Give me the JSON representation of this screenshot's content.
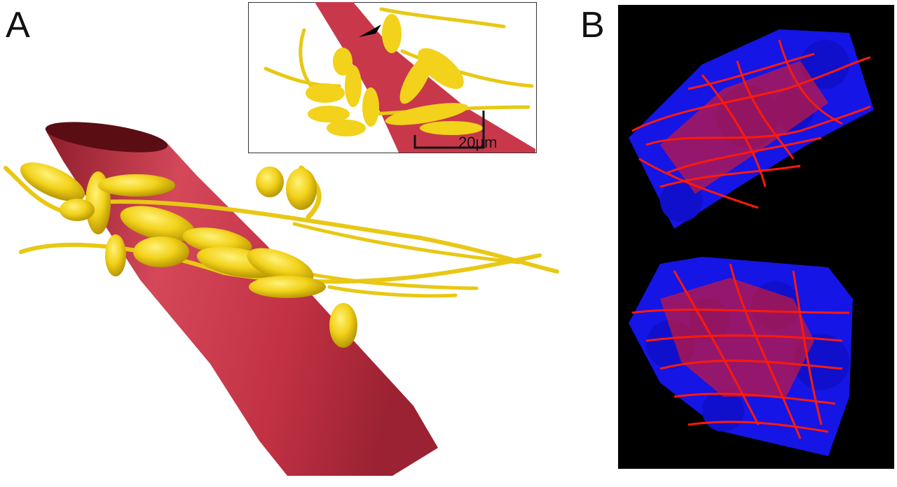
{
  "figure": {
    "panel_a": {
      "label": "A",
      "inset": {
        "scale_bar_label": "20µm",
        "arrowhead": "arrowhead-marker"
      }
    },
    "panel_b": {
      "label": "B"
    }
  },
  "colors": {
    "vessel": "#c8384a",
    "vessel_dark": "#5a0d13",
    "nerve": "#f2d21a",
    "nerve_shadow": "#b89600",
    "blue_cells": "#1515e6",
    "red_fibers": "#ff1a0a",
    "black_bg": "#000000"
  }
}
